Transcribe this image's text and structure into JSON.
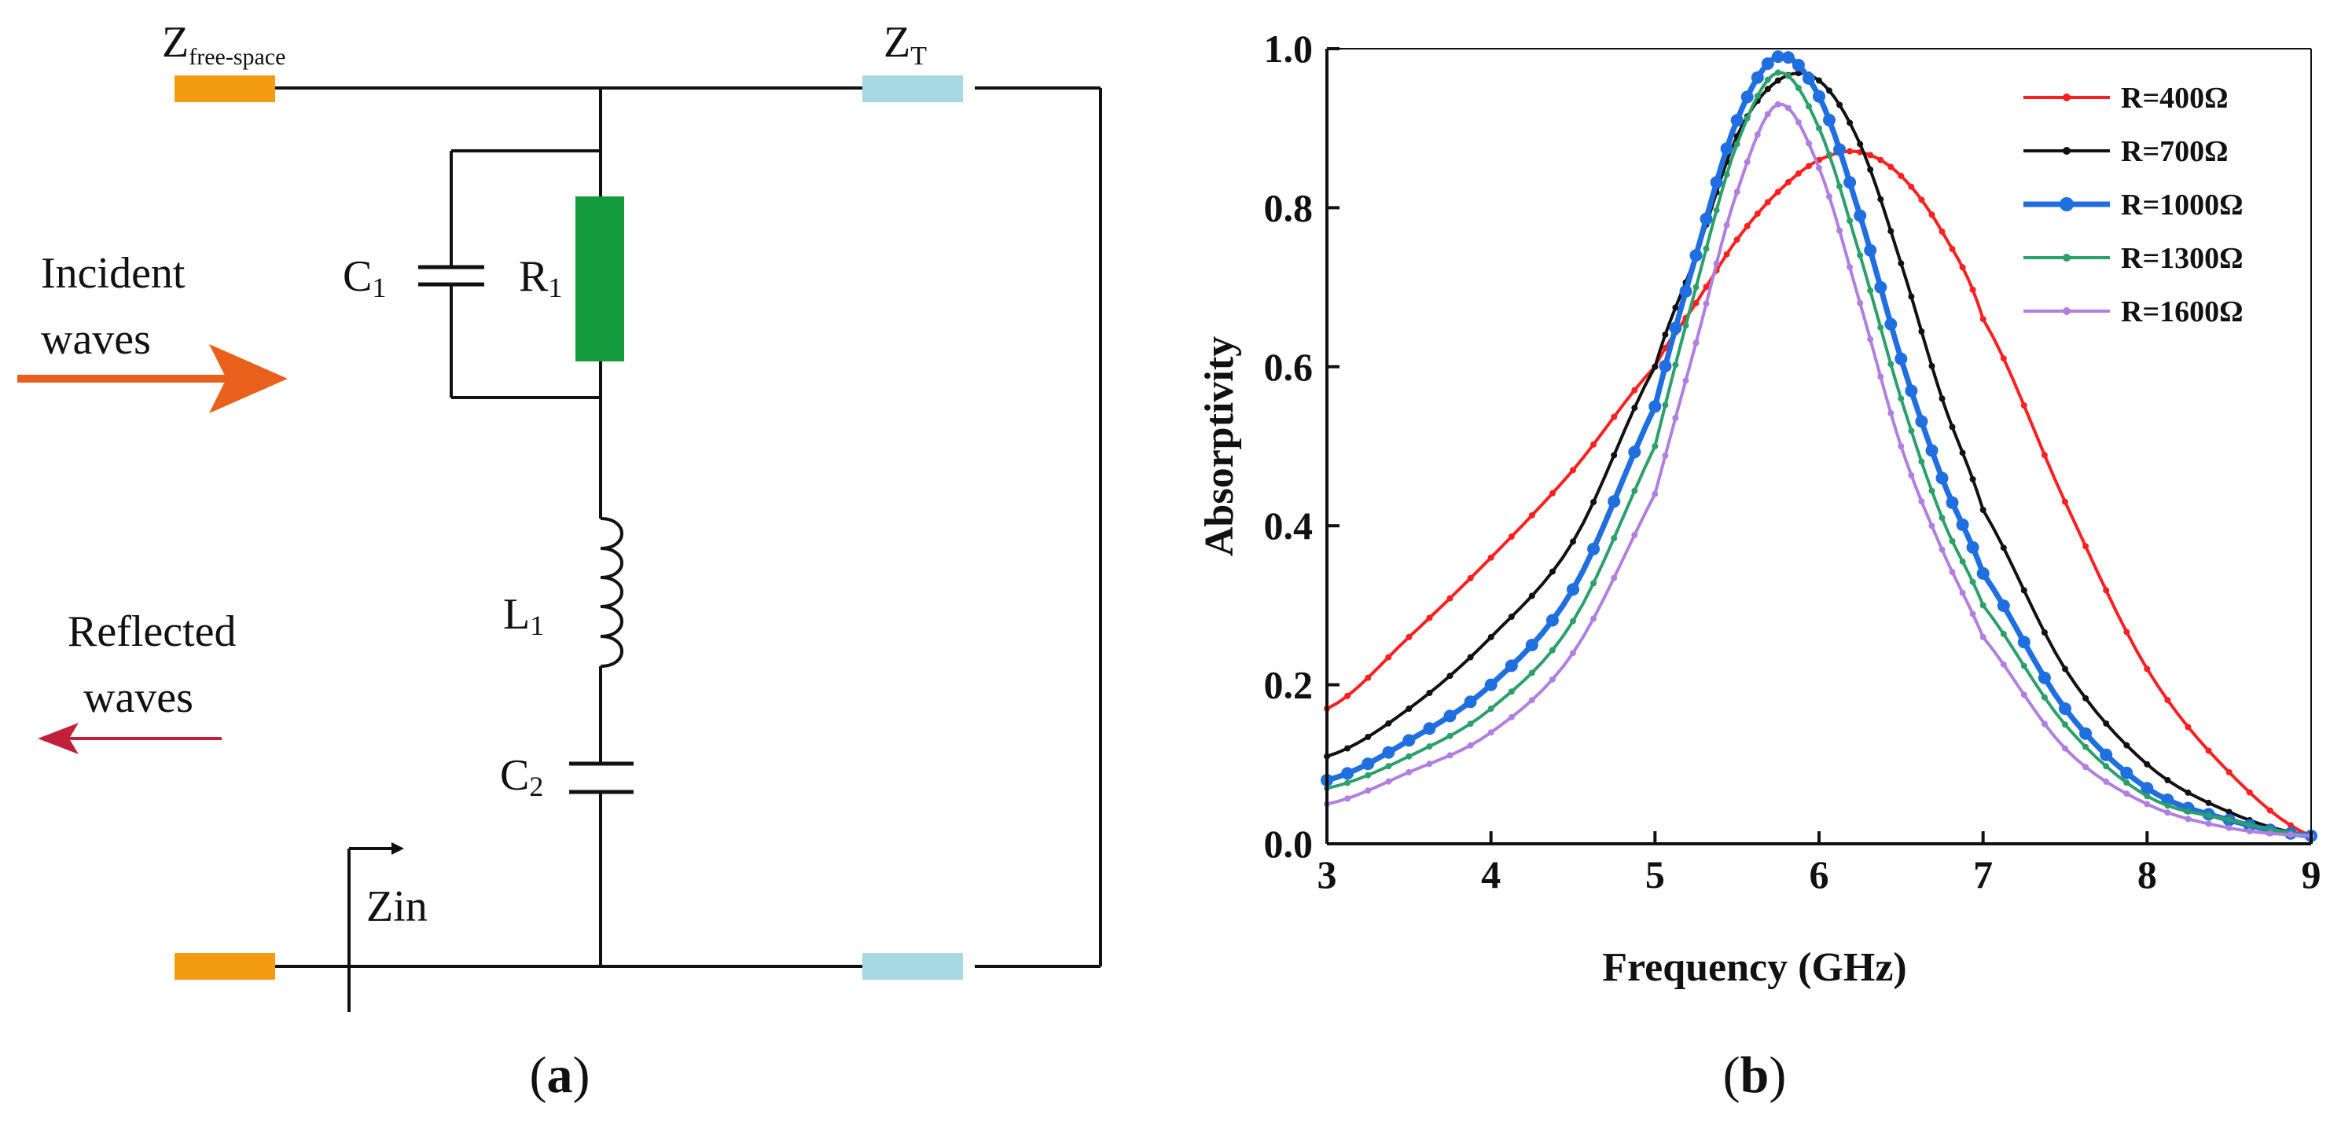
{
  "panel_a": {
    "caption_open": "(",
    "caption_letter": "a",
    "caption_close": ")",
    "z_free_space_main": "Z",
    "z_free_space_sub": "free-space",
    "z_t_main": "Z",
    "z_t_sub": "T",
    "incident_line1": "Incident",
    "incident_line2": "waves",
    "reflected_line1": "Reflected",
    "reflected_line2": "waves",
    "c1_main": "C",
    "c1_sub": "1",
    "r1_main": "R",
    "r1_sub": "1",
    "l1_main": "L",
    "l1_sub": "1",
    "c2_main": "C",
    "c2_sub": "2",
    "zin": "Zin",
    "colors": {
      "port_orange": "#f39c12",
      "line_light_blue": "#a6d9e3",
      "resistor_green": "#139a3c",
      "incident_arrow": "#e8601c",
      "reflected_arrow": "#c21f3a"
    }
  },
  "panel_b": {
    "caption_open": "(",
    "caption_letter": "b",
    "caption_close": ")"
  },
  "chart_data": {
    "type": "line",
    "title": "",
    "xlabel": "Frequency (GHz)",
    "ylabel": "Absorptivity",
    "xlim": [
      3,
      9
    ],
    "ylim": [
      0,
      1.0
    ],
    "xticks": [
      "3",
      "4",
      "5",
      "6",
      "7",
      "8",
      "9"
    ],
    "yticks": [
      "0.0",
      "0.2",
      "0.4",
      "0.6",
      "0.8",
      "1.0"
    ],
    "legend_position": "top-right",
    "x": [
      3.0,
      3.5,
      4.0,
      4.5,
      5.0,
      5.25,
      5.5,
      5.75,
      6.0,
      6.25,
      6.5,
      6.75,
      7.0,
      7.5,
      8.0,
      8.5,
      9.0
    ],
    "series": [
      {
        "name": "R=400Ω",
        "color": "#ff1f1f",
        "values": [
          0.17,
          0.26,
          0.36,
          0.47,
          0.6,
          0.68,
          0.76,
          0.82,
          0.86,
          0.87,
          0.84,
          0.77,
          0.66,
          0.43,
          0.22,
          0.09,
          0.01
        ]
      },
      {
        "name": "R=700Ω",
        "color": "#111111",
        "values": [
          0.11,
          0.17,
          0.26,
          0.38,
          0.6,
          0.74,
          0.89,
          0.96,
          0.96,
          0.88,
          0.73,
          0.56,
          0.42,
          0.22,
          0.1,
          0.04,
          0.01
        ]
      },
      {
        "name": "R=1000Ω",
        "color": "#1f6fe0",
        "values": [
          0.08,
          0.13,
          0.2,
          0.32,
          0.55,
          0.74,
          0.91,
          0.99,
          0.94,
          0.79,
          0.61,
          0.46,
          0.34,
          0.17,
          0.07,
          0.03,
          0.01
        ]
      },
      {
        "name": "R=1300Ω",
        "color": "#2ca06a",
        "values": [
          0.07,
          0.11,
          0.17,
          0.28,
          0.5,
          0.7,
          0.88,
          0.97,
          0.9,
          0.74,
          0.56,
          0.41,
          0.3,
          0.15,
          0.06,
          0.03,
          0.01
        ]
      },
      {
        "name": "R=1600Ω",
        "color": "#b07fe0",
        "values": [
          0.05,
          0.09,
          0.14,
          0.24,
          0.44,
          0.63,
          0.82,
          0.93,
          0.85,
          0.68,
          0.5,
          0.37,
          0.26,
          0.12,
          0.05,
          0.02,
          0.01
        ]
      }
    ]
  }
}
